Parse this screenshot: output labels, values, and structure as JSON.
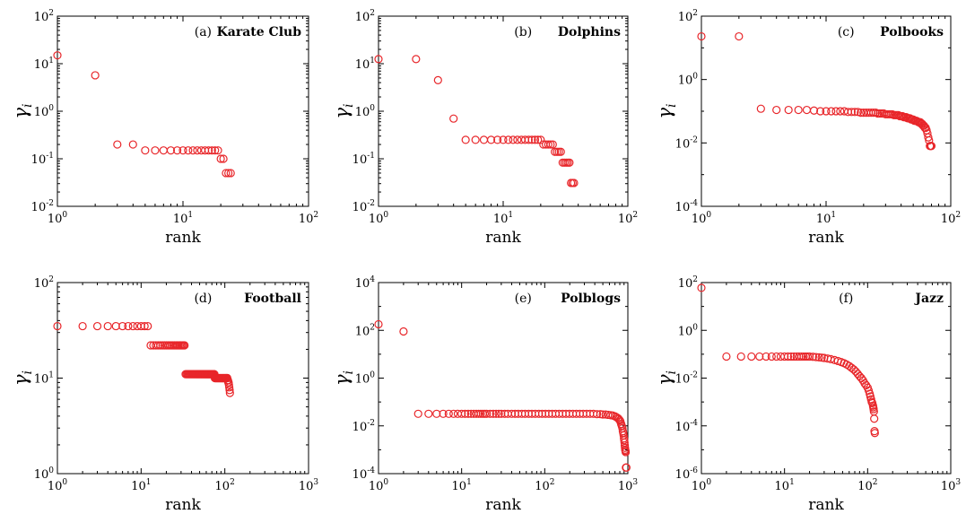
{
  "figure": {
    "marker_color": "#e8262a",
    "y_label_symbol": "γ",
    "y_label_subscript": "i"
  },
  "chart_data": [
    {
      "type": "scatter",
      "letter": "(a)",
      "title": "Karate Club",
      "xlabel": "rank",
      "ylabel": "γi",
      "xscale": "log",
      "yscale": "log",
      "xlim_exp": [
        0,
        2
      ],
      "ylim_exp": [
        -2,
        2
      ],
      "x": [
        1,
        2,
        3,
        4,
        5,
        6,
        7,
        8,
        9,
        10,
        11,
        12,
        13,
        14,
        15,
        16,
        17,
        18,
        19,
        20,
        21,
        22,
        23,
        24
      ],
      "y": [
        15,
        5.7,
        0.2,
        0.2,
        0.15,
        0.15,
        0.15,
        0.15,
        0.15,
        0.15,
        0.15,
        0.15,
        0.15,
        0.15,
        0.15,
        0.15,
        0.15,
        0.15,
        0.15,
        0.1,
        0.1,
        0.05,
        0.05,
        0.05
      ]
    },
    {
      "type": "scatter",
      "letter": "(b)",
      "title": "Dolphins",
      "xlabel": "rank",
      "ylabel": "γi",
      "xscale": "log",
      "yscale": "log",
      "xlim_exp": [
        0,
        2
      ],
      "ylim_exp": [
        -2,
        2
      ],
      "x": [
        1,
        2,
        3,
        4,
        5,
        6,
        7,
        8,
        9,
        10,
        11,
        12,
        13,
        14,
        15,
        16,
        17,
        18,
        19,
        20,
        21,
        22,
        23,
        24,
        25,
        26,
        27,
        28,
        29,
        30,
        31,
        32,
        33,
        34,
        35,
        36,
        37
      ],
      "y": [
        12.5,
        12.5,
        4.5,
        0.7,
        0.25,
        0.25,
        0.25,
        0.25,
        0.25,
        0.25,
        0.25,
        0.25,
        0.25,
        0.25,
        0.25,
        0.25,
        0.25,
        0.25,
        0.25,
        0.25,
        0.2,
        0.2,
        0.2,
        0.2,
        0.2,
        0.14,
        0.14,
        0.14,
        0.14,
        0.083,
        0.083,
        0.083,
        0.083,
        0.083,
        0.031,
        0.031,
        0.031
      ]
    },
    {
      "type": "scatter",
      "letter": "(c)",
      "title": "Polbooks",
      "xlabel": "rank",
      "ylabel": "γi",
      "xscale": "log",
      "yscale": "log",
      "xlim_exp": [
        0,
        2
      ],
      "ylim_exp": [
        -4,
        2
      ],
      "x": [
        1,
        2,
        3,
        4,
        5,
        6,
        7,
        8,
        9,
        10,
        11,
        12,
        13,
        14,
        15,
        16,
        17,
        18,
        19,
        20,
        21,
        22,
        23,
        24,
        25,
        26,
        27,
        28,
        29,
        30,
        31,
        32,
        33,
        34,
        35,
        36,
        37,
        38,
        39,
        40,
        41,
        42,
        43,
        44,
        45,
        46,
        47,
        48,
        49,
        50,
        51,
        52,
        53,
        54,
        55,
        56,
        57,
        58,
        59,
        60,
        61,
        62,
        63,
        64,
        65,
        66,
        67,
        68,
        69,
        70
      ],
      "y": [
        23,
        23,
        0.12,
        0.11,
        0.11,
        0.11,
        0.11,
        0.105,
        0.1,
        0.1,
        0.1,
        0.1,
        0.1,
        0.1,
        0.095,
        0.095,
        0.095,
        0.095,
        0.09,
        0.09,
        0.09,
        0.09,
        0.09,
        0.09,
        0.09,
        0.085,
        0.085,
        0.085,
        0.085,
        0.08,
        0.08,
        0.08,
        0.08,
        0.08,
        0.075,
        0.075,
        0.075,
        0.075,
        0.07,
        0.07,
        0.07,
        0.065,
        0.065,
        0.065,
        0.06,
        0.06,
        0.06,
        0.055,
        0.055,
        0.055,
        0.05,
        0.05,
        0.05,
        0.048,
        0.045,
        0.045,
        0.045,
        0.04,
        0.04,
        0.035,
        0.035,
        0.03,
        0.03,
        0.025,
        0.02,
        0.015,
        0.012,
        0.008,
        0.008,
        0.008
      ]
    },
    {
      "type": "scatter",
      "letter": "(d)",
      "title": "Football",
      "xlabel": "rank",
      "ylabel": "γi",
      "xscale": "log",
      "yscale": "log",
      "xlim_exp": [
        0,
        3
      ],
      "ylim_exp": [
        0,
        2
      ],
      "x": [
        1,
        2,
        3,
        4,
        5,
        6,
        7,
        8,
        9,
        10,
        11,
        12,
        13,
        14,
        15,
        16,
        17,
        18,
        19,
        20,
        21,
        22,
        23,
        24,
        25,
        26,
        27,
        28,
        29,
        30,
        31,
        32,
        33,
        34,
        35,
        36,
        37,
        38,
        39,
        40,
        41,
        42,
        43,
        44,
        45,
        46,
        47,
        48,
        49,
        50,
        51,
        52,
        53,
        54,
        55,
        56,
        57,
        58,
        59,
        60,
        61,
        62,
        63,
        64,
        65,
        66,
        67,
        68,
        69,
        70,
        71,
        72,
        73,
        74,
        75,
        76,
        77,
        78,
        79,
        80,
        81,
        82,
        83,
        84,
        85,
        86,
        87,
        88,
        89,
        90,
        91,
        92,
        93,
        94,
        95,
        96,
        97,
        98,
        99,
        100,
        101,
        102,
        103,
        104,
        105,
        106,
        107,
        108,
        109,
        110,
        111,
        112,
        113,
        114,
        115
      ],
      "y": [
        35,
        35,
        35,
        35,
        35,
        35,
        35,
        35,
        35,
        35,
        35,
        35,
        22,
        22,
        22,
        22,
        22,
        22,
        22,
        22,
        22,
        22,
        22,
        22,
        22,
        22,
        22,
        22,
        22,
        22,
        22,
        22,
        22,
        11,
        11,
        11,
        11,
        11,
        11,
        11,
        11,
        11,
        11,
        11,
        11,
        11,
        11,
        11,
        11,
        11,
        11,
        11,
        11,
        11,
        11,
        11,
        11,
        11,
        11,
        11,
        11,
        11,
        11,
        11,
        11,
        11,
        11,
        11,
        11,
        11,
        11,
        11,
        11,
        11,
        11,
        10,
        10,
        10,
        10,
        10,
        10,
        10,
        10,
        10,
        10,
        10,
        10,
        10,
        10,
        10,
        10,
        10,
        10,
        10,
        10,
        10,
        10,
        10,
        10,
        10,
        10,
        10,
        10,
        10,
        10,
        10,
        10,
        9.5,
        9.5,
        9,
        9,
        8.5,
        8,
        7.5,
        7
      ]
    },
    {
      "type": "scatter",
      "letter": "(e)",
      "title": "Polblogs",
      "xlabel": "rank",
      "ylabel": "γi",
      "xscale": "log",
      "yscale": "log",
      "xlim_exp": [
        0,
        3
      ],
      "ylim_exp": [
        -4,
        4
      ],
      "x": [
        1,
        2,
        3,
        4,
        5,
        6,
        7,
        8,
        9,
        10,
        11,
        12,
        13,
        14,
        15,
        16,
        17,
        18,
        19,
        20,
        22,
        24,
        26,
        28,
        30,
        33,
        36,
        40,
        44,
        48,
        53,
        58,
        64,
        70,
        77,
        85,
        93,
        102,
        112,
        123,
        135,
        149,
        164,
        180,
        198,
        218,
        240,
        264,
        290,
        319,
        351,
        386,
        425,
        467,
        500,
        540,
        580,
        620,
        660,
        700,
        730,
        760,
        780,
        800,
        815,
        830,
        845,
        860,
        870,
        880,
        890,
        898,
        905,
        912,
        918,
        924,
        930,
        936,
        942,
        948,
        954,
        960
      ],
      "y": [
        180,
        90,
        0.032,
        0.032,
        0.032,
        0.032,
        0.032,
        0.032,
        0.032,
        0.032,
        0.032,
        0.032,
        0.032,
        0.032,
        0.032,
        0.032,
        0.032,
        0.032,
        0.032,
        0.032,
        0.032,
        0.032,
        0.032,
        0.032,
        0.032,
        0.032,
        0.032,
        0.032,
        0.032,
        0.032,
        0.032,
        0.032,
        0.032,
        0.032,
        0.032,
        0.032,
        0.032,
        0.032,
        0.032,
        0.032,
        0.032,
        0.032,
        0.032,
        0.032,
        0.032,
        0.032,
        0.032,
        0.032,
        0.032,
        0.032,
        0.032,
        0.032,
        0.031,
        0.031,
        0.03,
        0.03,
        0.029,
        0.028,
        0.027,
        0.025,
        0.023,
        0.021,
        0.019,
        0.017,
        0.015,
        0.012,
        0.01,
        0.008,
        0.006,
        0.005,
        0.004,
        0.003,
        0.0025,
        0.002,
        0.0015,
        0.0012,
        0.001,
        0.0009,
        0.0008,
        0.00018,
        0.00018,
        0.00018
      ]
    },
    {
      "type": "scatter",
      "letter": "(f)",
      "title": "Jazz",
      "xlabel": "rank",
      "ylabel": "γi",
      "xscale": "log",
      "yscale": "log",
      "xlim_exp": [
        0,
        3
      ],
      "ylim_exp": [
        -6,
        2
      ],
      "x": [
        1,
        2,
        3,
        4,
        5,
        6,
        7,
        8,
        9,
        10,
        11,
        12,
        13,
        14,
        15,
        16,
        17,
        18,
        19,
        20,
        22,
        24,
        26,
        28,
        30,
        33,
        36,
        40,
        44,
        48,
        52,
        56,
        60,
        64,
        68,
        72,
        76,
        80,
        84,
        88,
        92,
        96,
        100,
        103,
        106,
        108,
        110,
        112,
        114,
        116,
        117,
        118,
        119,
        120,
        121,
        122
      ],
      "y": [
        60,
        0.08,
        0.08,
        0.08,
        0.08,
        0.08,
        0.08,
        0.08,
        0.08,
        0.08,
        0.08,
        0.08,
        0.08,
        0.08,
        0.08,
        0.08,
        0.08,
        0.08,
        0.08,
        0.08,
        0.078,
        0.076,
        0.074,
        0.072,
        0.07,
        0.066,
        0.062,
        0.057,
        0.052,
        0.047,
        0.042,
        0.037,
        0.032,
        0.027,
        0.023,
        0.019,
        0.015,
        0.012,
        0.01,
        0.008,
        0.006,
        0.005,
        0.004,
        0.003,
        0.0022,
        0.0017,
        0.0013,
        0.001,
        0.0009,
        0.0007,
        0.0006,
        0.0005,
        0.0004,
        0.0002,
        6e-05,
        5e-05
      ]
    }
  ]
}
